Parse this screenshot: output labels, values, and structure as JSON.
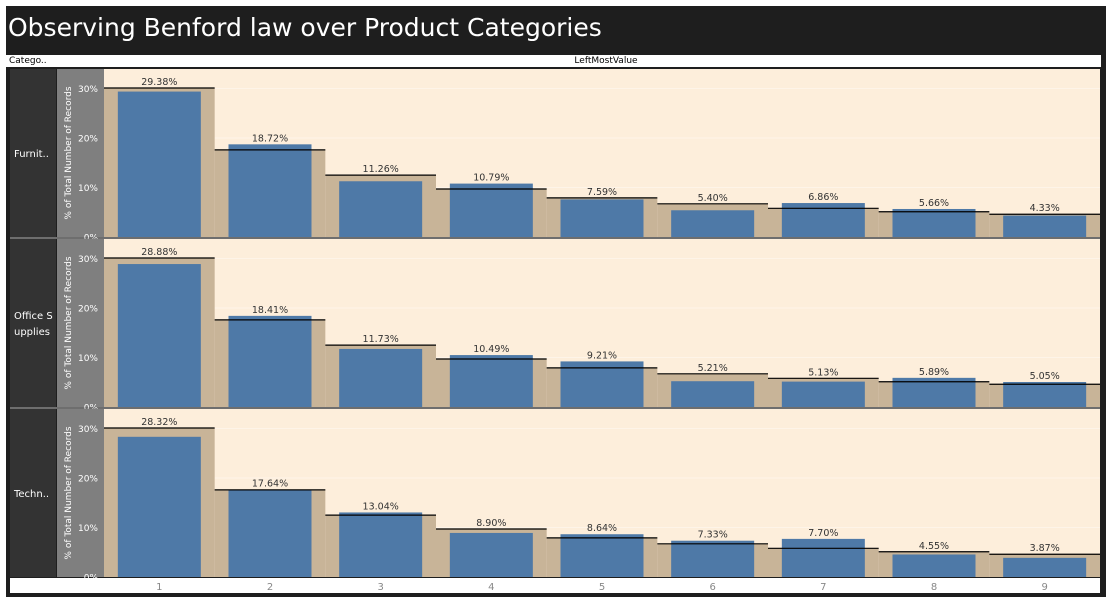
{
  "title": "Observing Benford law over Product Categories",
  "header": {
    "row_field": "Catego..",
    "column_field": "LeftMostValue"
  },
  "colors": {
    "frame": "#1e1e1e",
    "plot_background": "#fdeedb",
    "benford_band": "#c8b498",
    "bar": "#4e79a7",
    "reference_line": "#000000",
    "axis_band": "#7f7f7f",
    "row_header": "#333333"
  },
  "chart_data": {
    "type": "bar",
    "xlabel": "",
    "ylabel": "% of Total Number of Records",
    "ylim": [
      0,
      31
    ],
    "y_ticks": [
      "0%",
      "10%",
      "20%",
      "30%"
    ],
    "categories": [
      "1",
      "2",
      "3",
      "4",
      "5",
      "6",
      "7",
      "8",
      "9"
    ],
    "benford": [
      30.1,
      17.6,
      12.5,
      9.7,
      7.9,
      6.7,
      5.8,
      5.1,
      4.6
    ],
    "panels": [
      {
        "row_label": "Furnit..",
        "values": [
          29.38,
          18.72,
          11.26,
          10.79,
          7.59,
          5.4,
          6.86,
          5.66,
          4.33
        ],
        "labels": [
          "29.38%",
          "18.72%",
          "11.26%",
          "10.79%",
          "7.59%",
          "5.40%",
          "6.86%",
          "5.66%",
          "4.33%"
        ]
      },
      {
        "row_label": "Office Supplies",
        "row_label_lines": [
          "Office S",
          "upplies"
        ],
        "values": [
          28.88,
          18.41,
          11.73,
          10.49,
          9.21,
          5.21,
          5.13,
          5.89,
          5.05
        ],
        "labels": [
          "28.88%",
          "18.41%",
          "11.73%",
          "10.49%",
          "9.21%",
          "5.21%",
          "5.13%",
          "5.89%",
          "5.05%"
        ]
      },
      {
        "row_label": "Techn..",
        "values": [
          28.32,
          17.64,
          13.04,
          8.9,
          8.64,
          7.33,
          7.7,
          4.55,
          3.87
        ],
        "labels": [
          "28.32%",
          "17.64%",
          "13.04%",
          "8.90%",
          "8.64%",
          "7.33%",
          "7.70%",
          "4.55%",
          "3.87%"
        ]
      }
    ]
  }
}
